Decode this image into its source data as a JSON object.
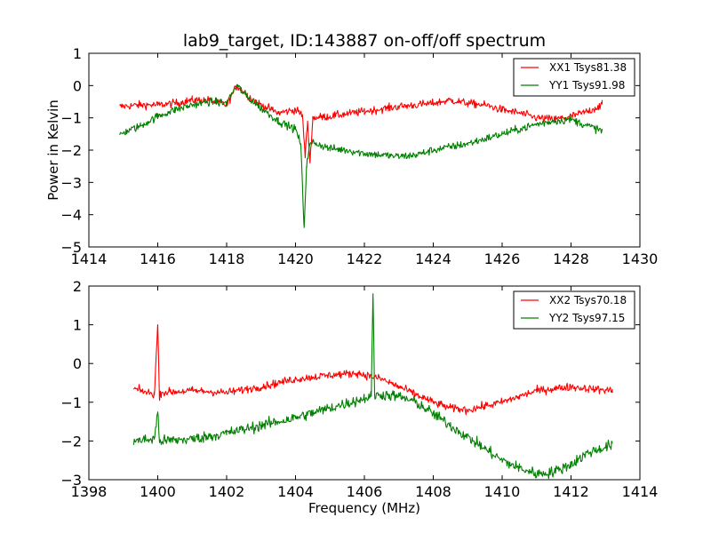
{
  "chart_data": [
    {
      "type": "line",
      "title": "lab9_target, ID:143887 on-off/off spectrum",
      "xlabel": "",
      "ylabel": "Power in Kelvin",
      "xlim": [
        1414,
        1430
      ],
      "ylim": [
        -5,
        1
      ],
      "xticks": [
        1414,
        1416,
        1418,
        1420,
        1422,
        1424,
        1426,
        1428,
        1430
      ],
      "yticks": [
        -5,
        -4,
        -3,
        -2,
        -1,
        0,
        1
      ],
      "xtick_labels": [
        "1414",
        "1416",
        "1418",
        "1420",
        "1422",
        "1424",
        "1426",
        "1428",
        "1430"
      ],
      "ytick_labels": [
        "−5",
        "−4",
        "−3",
        "−2",
        "−1",
        "0",
        "1"
      ],
      "grid": false,
      "legend_position": "top-right",
      "series": [
        {
          "name": "XX1 Tsys81.38",
          "color": "#ff0000",
          "noise": 0.12,
          "x": [
            1414.9,
            1415.5,
            1416.0,
            1416.5,
            1417.0,
            1417.5,
            1418.0,
            1418.2,
            1418.3,
            1418.6,
            1419.0,
            1419.5,
            1420.0,
            1420.2,
            1420.28,
            1420.35,
            1420.42,
            1420.5,
            1421.0,
            1422.0,
            1423.0,
            1424.0,
            1424.5,
            1425.0,
            1425.5,
            1426.0,
            1426.5,
            1427.0,
            1427.5,
            1428.0,
            1428.5,
            1428.9
          ],
          "y": [
            -0.65,
            -0.6,
            -0.6,
            -0.55,
            -0.45,
            -0.45,
            -0.6,
            -0.2,
            0.0,
            -0.3,
            -0.6,
            -0.85,
            -0.75,
            -0.9,
            -2.2,
            -1.1,
            -2.4,
            -1.0,
            -0.95,
            -0.8,
            -0.65,
            -0.55,
            -0.45,
            -0.55,
            -0.6,
            -0.75,
            -0.85,
            -1.0,
            -1.05,
            -0.95,
            -0.8,
            -0.6
          ]
        },
        {
          "name": "YY1 Tsys91.98",
          "color": "#007f00",
          "noise": 0.12,
          "x": [
            1414.9,
            1415.5,
            1416.0,
            1416.5,
            1417.0,
            1417.5,
            1418.0,
            1418.2,
            1418.3,
            1418.6,
            1419.0,
            1419.5,
            1420.0,
            1420.15,
            1420.25,
            1420.32,
            1420.4,
            1420.5,
            1421.0,
            1421.5,
            1422.0,
            1423.0,
            1423.5,
            1424.0,
            1425.0,
            1426.0,
            1427.0,
            1427.5,
            1428.0,
            1428.5,
            1428.9
          ],
          "y": [
            -1.5,
            -1.25,
            -0.95,
            -0.75,
            -0.6,
            -0.5,
            -0.55,
            -0.15,
            0.0,
            -0.35,
            -0.7,
            -1.1,
            -1.35,
            -1.8,
            -4.4,
            -2.5,
            -1.9,
            -1.75,
            -1.95,
            -2.0,
            -2.1,
            -2.2,
            -2.15,
            -2.0,
            -1.8,
            -1.5,
            -1.2,
            -1.1,
            -1.05,
            -1.25,
            -1.4
          ]
        }
      ]
    },
    {
      "type": "line",
      "title": "",
      "xlabel": "Frequency (MHz)",
      "ylabel": "",
      "xlim": [
        1398,
        1414
      ],
      "ylim": [
        -3,
        2
      ],
      "xticks": [
        1398,
        1400,
        1402,
        1404,
        1406,
        1408,
        1410,
        1412,
        1414
      ],
      "yticks": [
        -3,
        -2,
        -1,
        0,
        1,
        2
      ],
      "xtick_labels": [
        "1398",
        "1400",
        "1402",
        "1404",
        "1406",
        "1408",
        "1410",
        "1412",
        "1414"
      ],
      "ytick_labels": [
        "−3",
        "−2",
        "−1",
        "0",
        "1",
        "2"
      ],
      "grid": false,
      "legend_position": "top-right",
      "series": [
        {
          "name": "XX2 Tsys70.18",
          "color": "#ff0000",
          "noise": 0.1,
          "x": [
            1399.3,
            1399.9,
            1400.0,
            1400.05,
            1400.1,
            1401.0,
            1402.0,
            1403.0,
            1404.0,
            1405.0,
            1405.8,
            1406.5,
            1407.0,
            1407.5,
            1408.0,
            1408.5,
            1409.0,
            1409.5,
            1410.0,
            1410.5,
            1411.0,
            1411.5,
            1412.0,
            1412.5,
            1413.2
          ],
          "y": [
            -0.65,
            -0.8,
            1.0,
            -0.9,
            -0.75,
            -0.7,
            -0.75,
            -0.6,
            -0.4,
            -0.3,
            -0.25,
            -0.4,
            -0.6,
            -0.8,
            -1.0,
            -1.15,
            -1.2,
            -1.1,
            -1.0,
            -0.85,
            -0.7,
            -0.65,
            -0.6,
            -0.65,
            -0.7
          ]
        },
        {
          "name": "YY2 Tsys97.15",
          "color": "#007f00",
          "noise": 0.14,
          "x": [
            1399.3,
            1399.9,
            1400.0,
            1400.05,
            1400.1,
            1401.0,
            1402.0,
            1403.0,
            1404.0,
            1405.0,
            1406.0,
            1406.2,
            1406.25,
            1406.3,
            1406.5,
            1407.0,
            1407.5,
            1408.0,
            1408.5,
            1409.0,
            1409.5,
            1410.0,
            1410.5,
            1411.0,
            1411.5,
            1412.0,
            1412.5,
            1413.2
          ],
          "y": [
            -2.0,
            -1.95,
            -1.25,
            -2.0,
            -2.0,
            -1.95,
            -1.8,
            -1.6,
            -1.4,
            -1.15,
            -0.9,
            -0.85,
            1.8,
            -0.85,
            -0.8,
            -0.85,
            -1.0,
            -1.3,
            -1.6,
            -1.9,
            -2.2,
            -2.5,
            -2.7,
            -2.85,
            -2.8,
            -2.6,
            -2.3,
            -2.1
          ]
        }
      ]
    }
  ]
}
